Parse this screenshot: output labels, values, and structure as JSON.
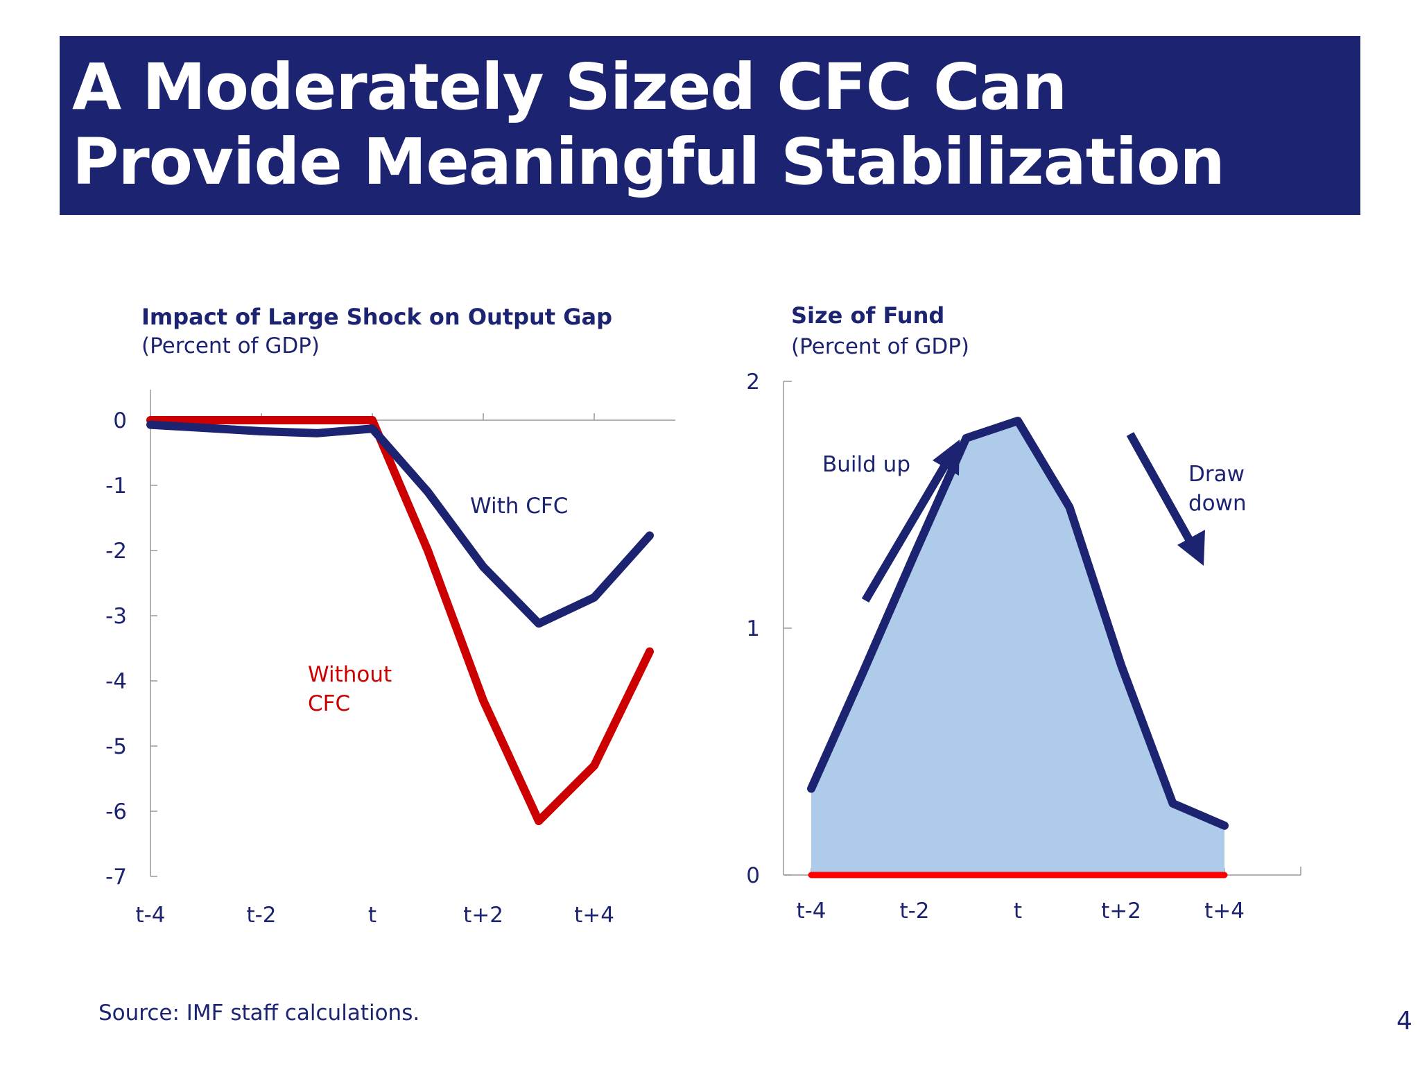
{
  "slide": {
    "title": "A Moderately Sized CFC Can Provide Meaningful Stabilization",
    "source": "Source: IMF staff calculations.",
    "page_number": "4"
  },
  "colors": {
    "navy": "#1c2370",
    "red": "#cc0000",
    "bright_red": "#ff0000",
    "fill_blue": "#aecbea"
  },
  "chart_data": [
    {
      "type": "line",
      "title": "Impact of Large Shock on Output Gap",
      "subtitle": "(Percent of GDP)",
      "x": [
        "t-4",
        "t-3",
        "t-2",
        "t-1",
        "t",
        "t+1",
        "t+2",
        "t+3",
        "t+4",
        "t+5"
      ],
      "x_tick_labels": [
        "t-4",
        "t-2",
        "t",
        "t+2",
        "t+4"
      ],
      "y_ticks": [
        0,
        -1,
        -2,
        -3,
        -4,
        -5,
        -6,
        -7
      ],
      "ylim": [
        -7,
        0.5
      ],
      "series": [
        {
          "name": "With CFC",
          "color": "#1c2370",
          "values": [
            -0.07,
            -0.12,
            -0.17,
            -0.2,
            -0.13,
            -1.1,
            -2.25,
            -3.12,
            -2.72,
            -1.77
          ]
        },
        {
          "name": "Without CFC",
          "color": "#cc0000",
          "values": [
            0,
            0,
            0,
            0,
            0,
            -2.0,
            -4.3,
            -6.15,
            -5.3,
            -3.55
          ]
        }
      ]
    },
    {
      "type": "area",
      "title": "Size of Fund",
      "subtitle": "(Percent of GDP)",
      "x": [
        "t-4",
        "t-3",
        "t-2",
        "t-1",
        "t",
        "t+1",
        "t+2",
        "t+3",
        "t+4",
        "t+5"
      ],
      "x_tick_labels": [
        "t-4",
        "t-2",
        "t",
        "t+2",
        "t+4"
      ],
      "y_ticks": [
        0,
        1,
        2
      ],
      "ylim": [
        0,
        2
      ],
      "series": [
        {
          "color": "#1c2370",
          "fill": "#aecbea",
          "values": [
            0.35,
            0.82,
            1.3,
            1.77,
            1.84,
            1.49,
            0.85,
            0.29,
            0.2,
            null
          ]
        },
        {
          "color": "#ff0000",
          "values": [
            0,
            0,
            0,
            0,
            0,
            0,
            0,
            0,
            0,
            null
          ]
        }
      ],
      "annotations": [
        "Build up",
        "Draw down"
      ]
    }
  ]
}
